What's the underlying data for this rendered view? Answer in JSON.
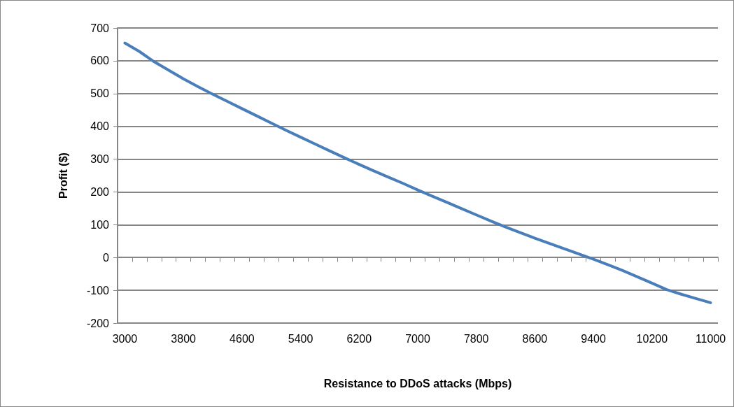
{
  "chart_data": {
    "type": "line",
    "xlabel": "Resistance to DDoS attacks (Mbps)",
    "ylabel": "Profit ($)",
    "categories": [
      "3000",
      null,
      null,
      null,
      "3800",
      null,
      null,
      null,
      "4600",
      null,
      null,
      null,
      "5400",
      null,
      null,
      null,
      "6200",
      null,
      null,
      null,
      "7000",
      null,
      null,
      null,
      "7800",
      null,
      null,
      null,
      "8600",
      null,
      null,
      null,
      "9400",
      null,
      null,
      null,
      "10200",
      null,
      null,
      null,
      "11000"
    ],
    "values": [
      654,
      628,
      597,
      571,
      545,
      521,
      498,
      476,
      454,
      432,
      410,
      388,
      367,
      346,
      325,
      304,
      284,
      264,
      245,
      226,
      206,
      187,
      168,
      149,
      130,
      111,
      93,
      76,
      59,
      43,
      27,
      11,
      -5,
      -22,
      -40,
      -59,
      -78,
      -98,
      -112,
      -125,
      -138
    ],
    "color": "#4a7ebb",
    "ylim": [
      -200,
      700
    ],
    "yticks": [
      -200,
      -100,
      0,
      100,
      200,
      300,
      400,
      500,
      600,
      700
    ],
    "grid": "y",
    "marker": "none",
    "line_style": "solid"
  }
}
